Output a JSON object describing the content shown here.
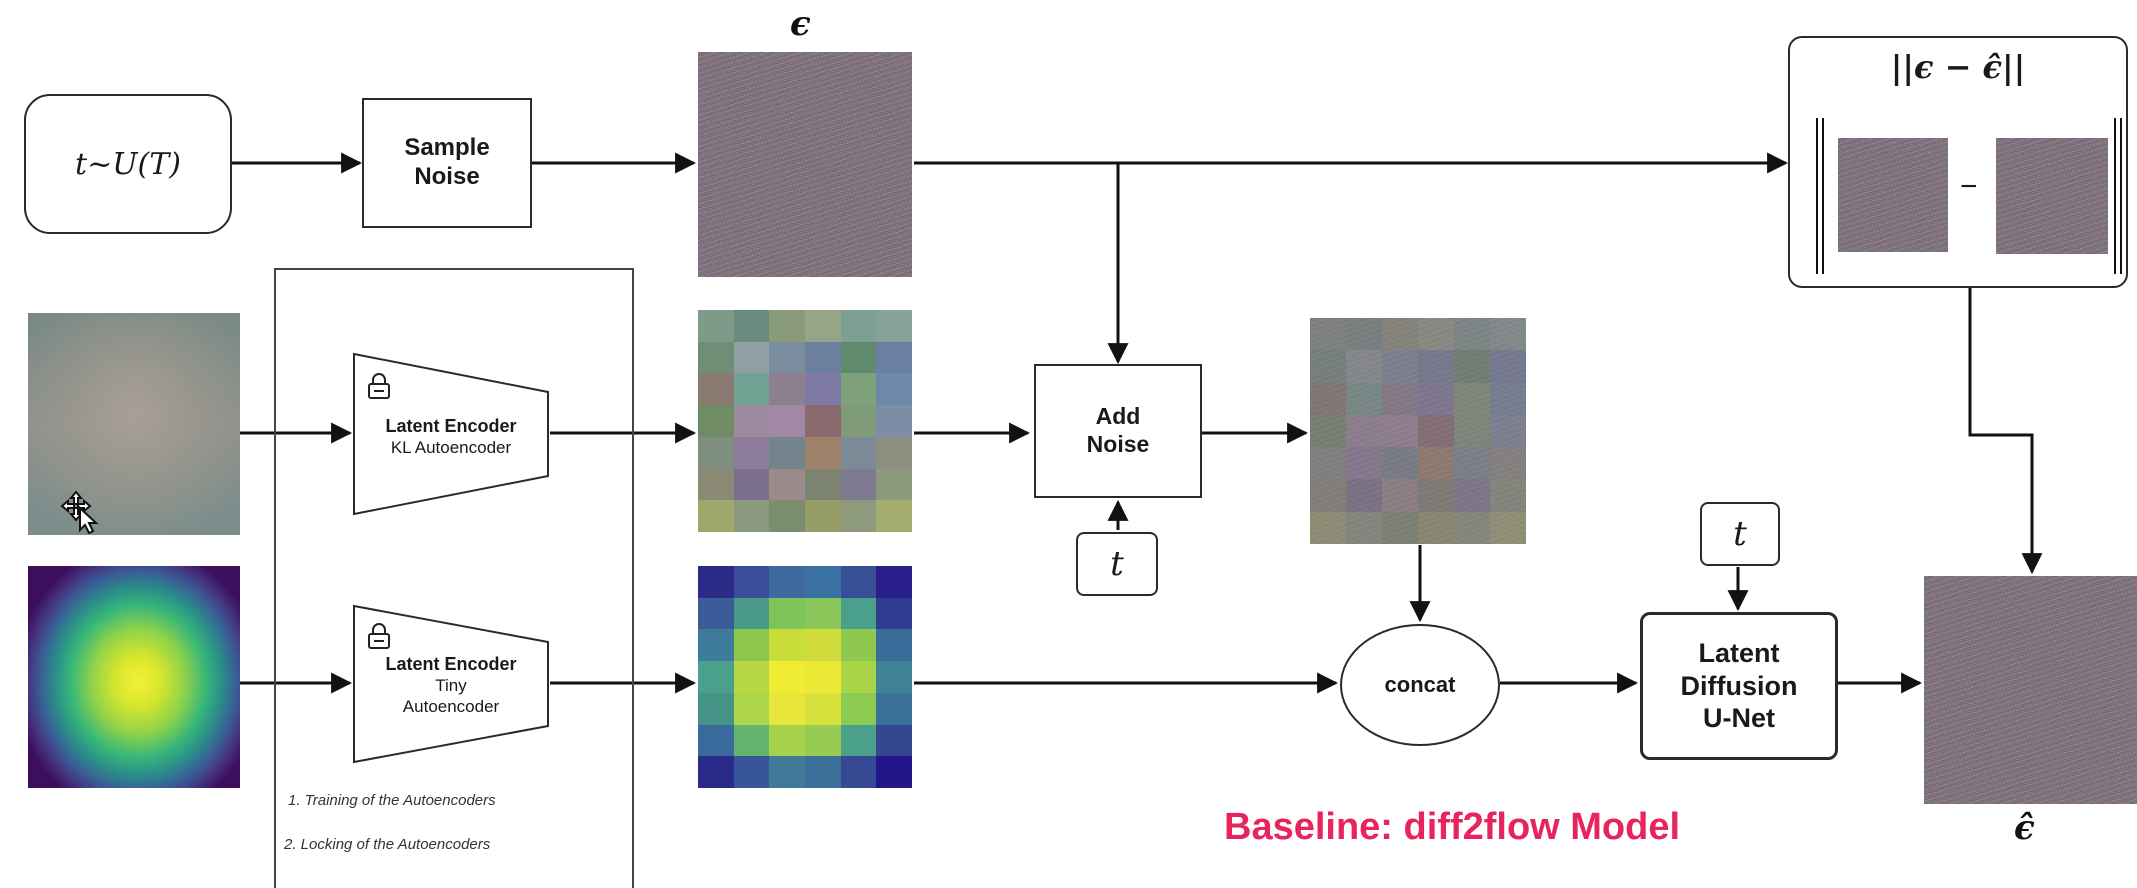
{
  "labels": {
    "t_sample": "t~U(T)",
    "sample_noise": [
      "Sample",
      "Noise"
    ],
    "epsilon": "ϵ",
    "loss": "||ϵ − ϵ̂||",
    "minus": "−",
    "encoder_kl_title": "Latent Encoder",
    "encoder_kl_sub": "KL Autoencoder",
    "encoder_tiny_title": "Latent Encoder",
    "encoder_tiny_sub": [
      "Tiny",
      "Autoencoder"
    ],
    "add_noise": [
      "Add",
      "Noise"
    ],
    "t_add_noise": "t",
    "t_unet": "t",
    "concat": "concat",
    "unet": [
      "Latent",
      "Diffusion",
      "U-Net"
    ],
    "epsilon_hat": "ϵ̂",
    "caption_1": "1. Training of the Autoencoders",
    "caption_2": "2. Locking of the Autoencoders",
    "title": "Baseline: diff2flow Model"
  },
  "icons": {
    "lock": "lock-icon",
    "cursor": "move-cursor-icon"
  },
  "colors": {
    "title": "#e8245e",
    "stroke": "#1a1a1a"
  }
}
